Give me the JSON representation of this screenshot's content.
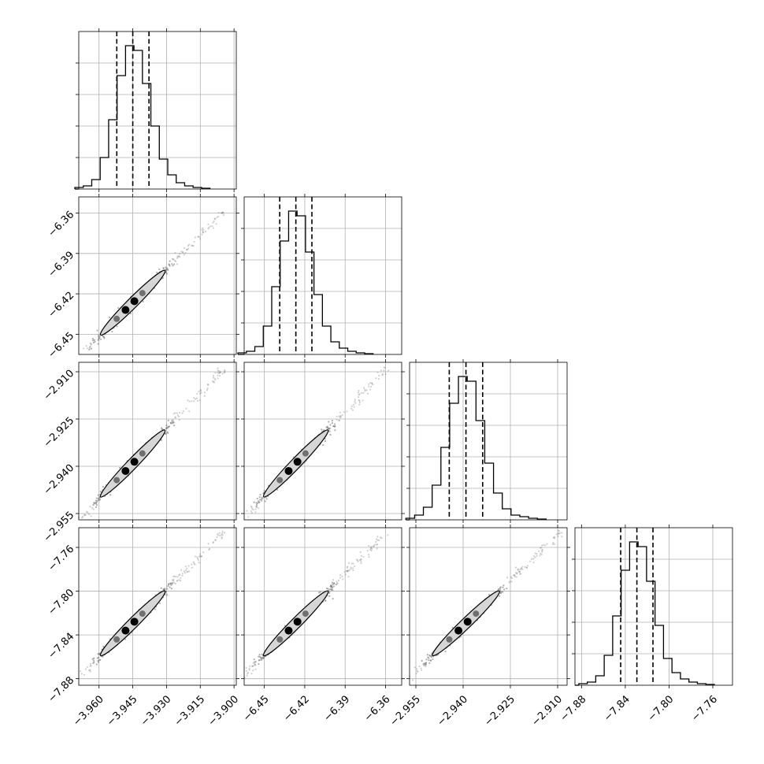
{
  "chart_data": {
    "type": "corner",
    "colors": {
      "line": "#000000",
      "grid": "#b0b0b0",
      "contour_fill": "#d6d6d6",
      "scatter": "#7a7a7a"
    },
    "grid": true,
    "quantiles": [
      0.16,
      0.5,
      0.84
    ],
    "parameters": [
      {
        "range": [
          -3.969,
          -3.899
        ],
        "ticks": [
          "−3.960",
          "−3.945",
          "−3.930",
          "−3.915",
          "−3.900"
        ],
        "tick_values": [
          -3.96,
          -3.945,
          -3.93,
          -3.915,
          -3.9
        ],
        "quantile_values": [
          -3.9521,
          -3.945,
          -3.9378
        ],
        "histogram": [
          1,
          2,
          6,
          20,
          44,
          72,
          91,
          88,
          67,
          40,
          19,
          9,
          4,
          2,
          1,
          0.5
        ]
      },
      {
        "range": [
          -6.465,
          -6.348
        ],
        "ticks": [
          "−6.45",
          "−6.42",
          "−6.39",
          "−6.36"
        ],
        "tick_values": [
          -6.45,
          -6.42,
          -6.39,
          -6.36
        ],
        "quantile_values": [
          -6.4386,
          -6.4266,
          -6.4147
        ],
        "histogram": [
          1,
          2,
          5,
          18,
          43,
          72,
          91,
          88,
          65,
          38,
          18,
          8,
          4,
          2,
          1,
          0.5
        ]
      },
      {
        "range": [
          -2.957,
          -2.907
        ],
        "ticks": [
          "−2.955",
          "−2.940",
          "−2.925",
          "−2.910"
        ],
        "tick_values": [
          -2.955,
          -2.94,
          -2.925,
          -2.91
        ],
        "quantile_values": [
          -2.9444,
          -2.9391,
          -2.9338
        ],
        "histogram": [
          1,
          3,
          8,
          22,
          46,
          74,
          91,
          88,
          63,
          36,
          17,
          7,
          3,
          2,
          1,
          0.5
        ]
      },
      {
        "range": [
          -7.886,
          -7.742
        ],
        "ticks": [
          "−7.88",
          "−7.84",
          "−7.80",
          "−7.76"
        ],
        "tick_values": [
          -7.88,
          -7.84,
          -7.8,
          -7.76
        ],
        "quantile_values": [
          -7.8442,
          -7.8294,
          -7.8147
        ],
        "histogram": [
          1,
          2,
          6,
          19,
          44,
          73,
          91,
          88,
          66,
          38,
          17,
          8,
          4,
          2,
          1,
          0.5
        ]
      }
    ]
  }
}
